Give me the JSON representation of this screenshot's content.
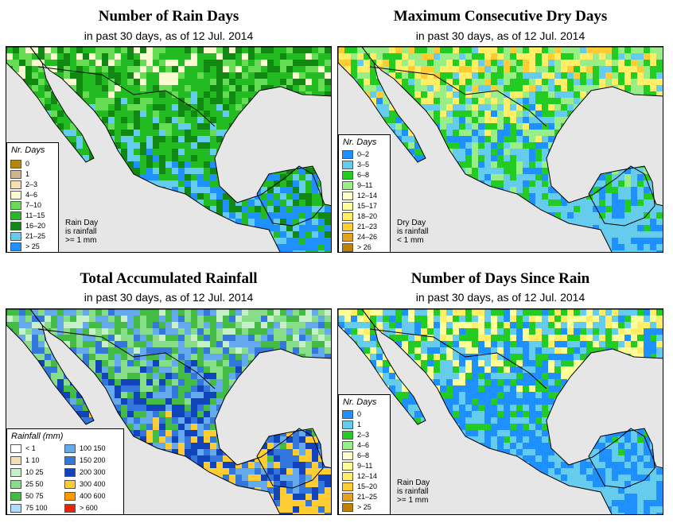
{
  "date_text": "in past 30 days, as of  12 Jul. 2014",
  "panels": {
    "rain_days": {
      "title": "Number of Rain Days",
      "legend_title": "Nr. Days",
      "legend": [
        {
          "label": "0",
          "color": "#b8860b"
        },
        {
          "label": "1",
          "color": "#d2b48c"
        },
        {
          "label": "2–3",
          "color": "#f5deb3"
        },
        {
          "label": "4–6",
          "color": "#fafad2"
        },
        {
          "label": "7–10",
          "color": "#66dd55"
        },
        {
          "label": "11–15",
          "color": "#22bb22"
        },
        {
          "label": "16–20",
          "color": "#118811"
        },
        {
          "label": "21–25",
          "color": "#66ccee"
        },
        {
          "label": "> 25",
          "color": "#1e90ff"
        }
      ],
      "note": [
        "Rain Day",
        "is rainfall",
        ">= 1 mm"
      ]
    },
    "dry_days": {
      "title": "Maximum Consecutive Dry Days",
      "legend_title": "Nr. Days",
      "legend": [
        {
          "label": "0–2",
          "color": "#1e90ff"
        },
        {
          "label": "3–5",
          "color": "#66ccee"
        },
        {
          "label": "6–8",
          "color": "#22cc22"
        },
        {
          "label": "9–11",
          "color": "#99ee88"
        },
        {
          "label": "12–14",
          "color": "#ffffcc"
        },
        {
          "label": "15–17",
          "color": "#ffff99"
        },
        {
          "label": "18–20",
          "color": "#ffee66"
        },
        {
          "label": "21–23",
          "color": "#ffcc33"
        },
        {
          "label": "24–26",
          "color": "#e6a020"
        },
        {
          "label": "> 26",
          "color": "#c08000"
        }
      ],
      "note": [
        "Dry Day",
        "is rainfall",
        "< 1 mm"
      ]
    },
    "accum_rain": {
      "title": "Total Accumulated Rainfall",
      "legend_title": "Rainfall (mm)",
      "legend_left": [
        {
          "label": "< 1",
          "color": "#ffffff"
        },
        {
          "label": "1  10",
          "color": "#f5deb3"
        },
        {
          "label": "10  25",
          "color": "#c8f0c8"
        },
        {
          "label": "25  50",
          "color": "#88dd88"
        },
        {
          "label": "50  75",
          "color": "#44bb44"
        },
        {
          "label": "75  100",
          "color": "#aaddff"
        }
      ],
      "legend_right": [
        {
          "label": "100  150",
          "color": "#66aaee"
        },
        {
          "label": "150  200",
          "color": "#3377dd"
        },
        {
          "label": "200  300",
          "color": "#1144bb"
        },
        {
          "label": "300  400",
          "color": "#ffcc33"
        },
        {
          "label": "400  600",
          "color": "#ff9900"
        },
        {
          "label": "> 600",
          "color": "#ee2200"
        }
      ]
    },
    "days_since": {
      "title": "Number of Days Since Rain",
      "legend_title": "Nr. Days",
      "legend": [
        {
          "label": "0",
          "color": "#1e90ff"
        },
        {
          "label": "1",
          "color": "#66ccee"
        },
        {
          "label": "2–3",
          "color": "#22cc22"
        },
        {
          "label": "4–6",
          "color": "#99ee88"
        },
        {
          "label": "6–8",
          "color": "#ffffcc"
        },
        {
          "label": "9–11",
          "color": "#ffff99"
        },
        {
          "label": "12–14",
          "color": "#ffee66"
        },
        {
          "label": "15–20",
          "color": "#ffcc33"
        },
        {
          "label": "21–25",
          "color": "#e6a020"
        },
        {
          "label": "> 25",
          "color": "#c08000"
        }
      ],
      "note": [
        "Rain Day",
        "is rainfall",
        ">= 1 mm"
      ]
    }
  }
}
